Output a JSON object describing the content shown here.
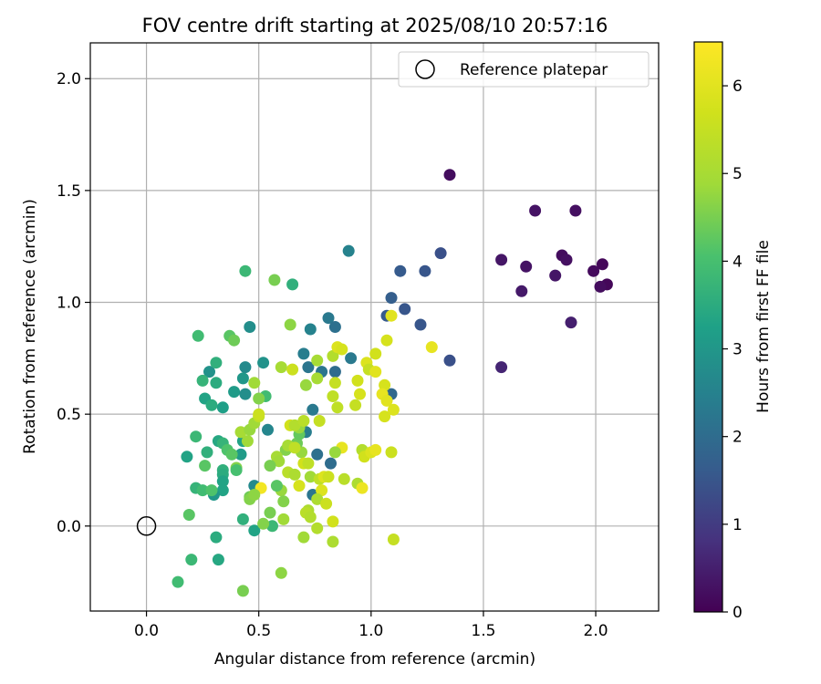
{
  "chart_data": {
    "type": "scatter",
    "title": "FOV centre drift starting at 2025/08/10 20:57:16",
    "xlabel": "Angular distance from reference (arcmin)",
    "ylabel": "Rotation from reference (arcmin)",
    "xlim": [
      -0.25,
      2.28
    ],
    "ylim": [
      -0.38,
      2.16
    ],
    "xticks": [
      0.0,
      0.5,
      1.0,
      1.5,
      2.0
    ],
    "xtick_labels": [
      "0.0",
      "0.5",
      "1.0",
      "1.5",
      "2.0"
    ],
    "yticks": [
      0.0,
      0.5,
      1.0,
      1.5,
      2.0
    ],
    "ytick_labels": [
      "0.0",
      "0.5",
      "1.0",
      "1.5",
      "2.0"
    ],
    "grid": true,
    "legend": {
      "position": "top-right",
      "label": "Reference platepar"
    },
    "colorbar": {
      "label": "Hours from first FF file",
      "range": [
        0,
        6.5
      ],
      "ticks": [
        0,
        1,
        2,
        3,
        4,
        5,
        6
      ],
      "tick_labels": [
        "0",
        "1",
        "2",
        "3",
        "4",
        "5",
        "6"
      ],
      "colormap": "viridis"
    },
    "reference_point": {
      "x": 0.0,
      "y": 0.0
    },
    "points": [
      [
        1.35,
        1.57,
        0.2
      ],
      [
        1.73,
        1.41,
        0.3
      ],
      [
        1.91,
        1.41,
        0.25
      ],
      [
        1.58,
        1.19,
        0.35
      ],
      [
        1.69,
        1.16,
        0.3
      ],
      [
        1.85,
        1.21,
        0.2
      ],
      [
        1.87,
        1.19,
        0.25
      ],
      [
        1.82,
        1.12,
        0.35
      ],
      [
        1.67,
        1.05,
        0.4
      ],
      [
        2.03,
        1.17,
        0.1
      ],
      [
        1.99,
        1.14,
        0.15
      ],
      [
        2.05,
        1.08,
        0.1
      ],
      [
        2.02,
        1.07,
        0.2
      ],
      [
        1.89,
        0.91,
        0.5
      ],
      [
        1.58,
        0.71,
        0.6
      ],
      [
        1.31,
        1.22,
        1.4
      ],
      [
        1.24,
        1.14,
        1.5
      ],
      [
        1.13,
        1.14,
        1.6
      ],
      [
        1.09,
        1.02,
        1.7
      ],
      [
        1.15,
        0.97,
        1.5
      ],
      [
        1.07,
        0.94,
        1.6
      ],
      [
        1.22,
        0.9,
        1.5
      ],
      [
        1.35,
        0.74,
        1.4
      ],
      [
        1.09,
        0.59,
        1.9
      ],
      [
        0.9,
        1.23,
        2.5
      ],
      [
        0.81,
        0.93,
        2.3
      ],
      [
        0.84,
        0.89,
        2.1
      ],
      [
        0.73,
        0.88,
        2.5
      ],
      [
        0.91,
        0.75,
        2.3
      ],
      [
        0.7,
        0.77,
        2.4
      ],
      [
        0.72,
        0.71,
        2.2
      ],
      [
        0.78,
        0.69,
        2.2
      ],
      [
        0.84,
        0.69,
        2.0
      ],
      [
        0.74,
        0.52,
        2.3
      ],
      [
        0.76,
        0.32,
        2.1
      ],
      [
        0.82,
        0.28,
        2.0
      ],
      [
        0.74,
        0.14,
        2.2
      ],
      [
        0.71,
        0.42,
        2.4
      ],
      [
        0.54,
        0.43,
        2.6
      ],
      [
        0.44,
        1.14,
        3.8
      ],
      [
        0.57,
        1.1,
        4.5
      ],
      [
        0.65,
        1.08,
        3.6
      ],
      [
        0.46,
        0.89,
        2.8
      ],
      [
        0.52,
        0.73,
        2.9
      ],
      [
        0.44,
        0.71,
        2.7
      ],
      [
        0.43,
        0.66,
        3.0
      ],
      [
        0.39,
        0.6,
        3.1
      ],
      [
        0.44,
        0.59,
        2.8
      ],
      [
        0.34,
        0.53,
        3.2
      ],
      [
        0.28,
        0.69,
        2.9
      ],
      [
        0.31,
        0.73,
        3.6
      ],
      [
        0.37,
        0.85,
        4.2
      ],
      [
        0.39,
        0.83,
        4.4
      ],
      [
        0.23,
        0.85,
        3.9
      ],
      [
        0.25,
        0.65,
        3.7
      ],
      [
        0.31,
        0.64,
        3.5
      ],
      [
        0.26,
        0.57,
        3.3
      ],
      [
        0.29,
        0.54,
        3.5
      ],
      [
        0.22,
        0.4,
        3.8
      ],
      [
        0.32,
        0.38,
        3.4
      ],
      [
        0.34,
        0.37,
        3.7
      ],
      [
        0.43,
        0.38,
        3.3
      ],
      [
        0.42,
        0.32,
        3.1
      ],
      [
        0.27,
        0.33,
        3.6
      ],
      [
        0.18,
        0.31,
        3.3
      ],
      [
        0.34,
        0.25,
        3.6
      ],
      [
        0.34,
        0.23,
        3.5
      ],
      [
        0.34,
        0.2,
        3.3
      ],
      [
        0.26,
        0.27,
        4.2
      ],
      [
        0.22,
        0.17,
        3.7
      ],
      [
        0.25,
        0.16,
        3.9
      ],
      [
        0.34,
        0.16,
        3.3
      ],
      [
        0.3,
        0.14,
        3.0
      ],
      [
        0.29,
        0.16,
        4.1
      ],
      [
        0.19,
        0.05,
        4.2
      ],
      [
        0.43,
        0.03,
        3.6
      ],
      [
        0.48,
        -0.02,
        3.3
      ],
      [
        0.31,
        -0.05,
        3.5
      ],
      [
        0.2,
        -0.15,
        3.8
      ],
      [
        0.32,
        -0.15,
        3.4
      ],
      [
        0.14,
        -0.25,
        3.9
      ],
      [
        0.43,
        -0.29,
        4.5
      ],
      [
        0.48,
        0.18,
        2.7
      ],
      [
        0.56,
        0.0,
        3.8
      ],
      [
        0.46,
        0.13,
        4.4
      ],
      [
        0.46,
        0.12,
        4.6
      ],
      [
        0.52,
        0.01,
        4.6
      ],
      [
        0.53,
        0.58,
        3.9
      ],
      [
        0.5,
        0.57,
        4.6
      ],
      [
        0.36,
        0.34,
        4.1
      ],
      [
        0.38,
        0.32,
        4.2
      ],
      [
        0.4,
        0.26,
        4.6
      ],
      [
        0.4,
        0.25,
        4.0
      ],
      [
        0.45,
        0.38,
        4.9
      ],
      [
        0.42,
        0.42,
        5.0
      ],
      [
        0.46,
        0.43,
        4.8
      ],
      [
        0.48,
        0.46,
        4.9
      ],
      [
        0.5,
        0.49,
        5.4
      ],
      [
        0.5,
        0.5,
        5.6
      ],
      [
        0.48,
        0.64,
        4.9
      ],
      [
        0.64,
        0.9,
        4.7
      ],
      [
        0.6,
        0.71,
        5.0
      ],
      [
        0.62,
        0.34,
        4.6
      ],
      [
        0.58,
        0.31,
        5.0
      ],
      [
        0.59,
        0.29,
        4.9
      ],
      [
        0.63,
        0.24,
        5.3
      ],
      [
        0.66,
        0.23,
        5.1
      ],
      [
        0.55,
        0.27,
        4.5
      ],
      [
        0.6,
        0.16,
        4.8
      ],
      [
        0.61,
        0.11,
        4.6
      ],
      [
        0.61,
        0.03,
        4.9
      ],
      [
        0.6,
        -0.21,
        4.7
      ],
      [
        0.7,
        -0.05,
        4.9
      ],
      [
        0.69,
        0.33,
        4.8
      ],
      [
        0.67,
        0.37,
        4.4
      ],
      [
        0.68,
        0.41,
        4.3
      ],
      [
        0.68,
        0.44,
        4.8
      ],
      [
        0.64,
        0.45,
        5.7
      ],
      [
        0.66,
        0.45,
        5.2
      ],
      [
        0.7,
        0.47,
        5.3
      ],
      [
        0.65,
        0.7,
        5.6
      ],
      [
        0.71,
        0.63,
        4.8
      ],
      [
        0.76,
        0.66,
        5.0
      ],
      [
        0.76,
        0.74,
        5.0
      ],
      [
        0.83,
        0.76,
        5.2
      ],
      [
        0.85,
        0.8,
        5.9
      ],
      [
        0.87,
        0.79,
        5.8
      ],
      [
        0.84,
        0.64,
        5.5
      ],
      [
        0.83,
        0.58,
        5.4
      ],
      [
        0.85,
        0.53,
        5.4
      ],
      [
        0.77,
        0.47,
        5.5
      ],
      [
        0.73,
        0.22,
        4.9
      ],
      [
        0.77,
        0.21,
        5.4
      ],
      [
        0.79,
        0.22,
        5.9
      ],
      [
        0.81,
        0.22,
        5.6
      ],
      [
        0.7,
        0.28,
        5.7
      ],
      [
        0.72,
        0.28,
        5.4
      ],
      [
        0.68,
        0.18,
        5.8
      ],
      [
        0.78,
        0.16,
        5.9
      ],
      [
        0.72,
        0.07,
        5.1
      ],
      [
        0.71,
        0.06,
        5.3
      ],
      [
        0.73,
        0.04,
        5.2
      ],
      [
        0.76,
        0.12,
        5.1
      ],
      [
        0.8,
        0.1,
        5.6
      ],
      [
        0.76,
        -0.01,
        5.2
      ],
      [
        0.83,
        0.02,
        5.7
      ],
      [
        0.83,
        -0.07,
        5.1
      ],
      [
        0.87,
        0.35,
        6.1
      ],
      [
        0.84,
        0.33,
        4.8
      ],
      [
        0.88,
        0.21,
        5.3
      ],
      [
        0.94,
        0.19,
        5.1
      ],
      [
        0.96,
        0.17,
        6.2
      ],
      [
        0.96,
        0.34,
        5.2
      ],
      [
        0.97,
        0.31,
        5.7
      ],
      [
        1.0,
        0.33,
        5.9
      ],
      [
        1.02,
        0.34,
        6.1
      ],
      [
        1.09,
        0.33,
        5.6
      ],
      [
        1.1,
        -0.06,
        5.5
      ],
      [
        1.27,
        0.8,
        6.1
      ],
      [
        1.09,
        0.94,
        6.0
      ],
      [
        1.07,
        0.83,
        5.8
      ],
      [
        0.98,
        0.73,
        5.9
      ],
      [
        1.02,
        0.77,
        5.7
      ],
      [
        0.99,
        0.7,
        5.5
      ],
      [
        1.02,
        0.69,
        6.0
      ],
      [
        0.94,
        0.65,
        5.7
      ],
      [
        0.95,
        0.59,
        5.8
      ],
      [
        0.93,
        0.54,
        5.5
      ],
      [
        1.06,
        0.63,
        5.8
      ],
      [
        1.05,
        0.59,
        6.1
      ],
      [
        1.07,
        0.56,
        6.0
      ],
      [
        1.1,
        0.52,
        5.9
      ],
      [
        1.06,
        0.49,
        5.8
      ],
      [
        0.51,
        0.17,
        6.3
      ],
      [
        0.58,
        0.18,
        4.2
      ],
      [
        0.55,
        0.06,
        4.5
      ],
      [
        0.63,
        0.36,
        5.0
      ],
      [
        0.66,
        0.35,
        5.4
      ],
      [
        0.48,
        0.14,
        4.7
      ]
    ]
  }
}
